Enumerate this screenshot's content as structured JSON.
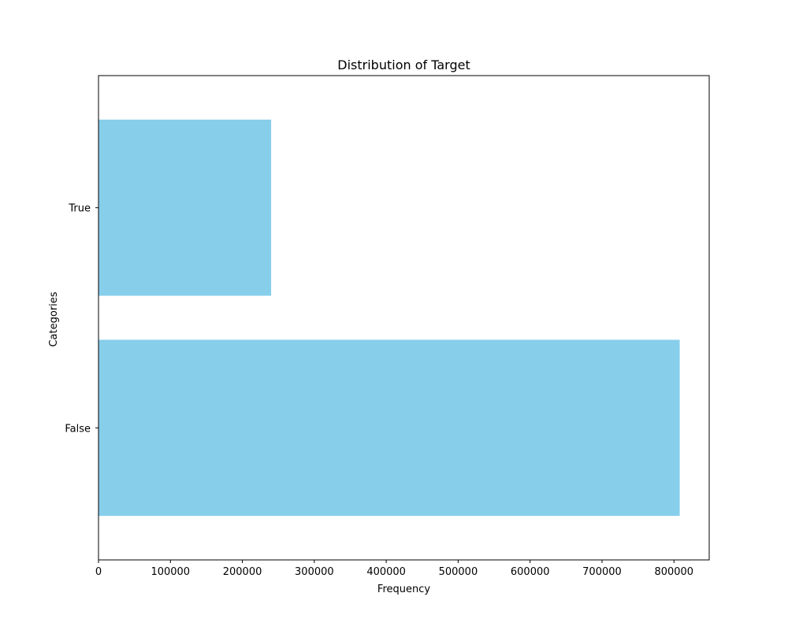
{
  "chart_data": {
    "type": "bar",
    "orientation": "horizontal",
    "title": "Distribution of Target",
    "xlabel": "Frequency",
    "ylabel": "Categories",
    "categories": [
      "False",
      "True"
    ],
    "values": [
      808000,
      240000
    ],
    "xlim": [
      0,
      849000
    ],
    "xticks": [
      0,
      100000,
      200000,
      300000,
      400000,
      500000,
      600000,
      700000,
      800000
    ],
    "grid": false,
    "legend": "none",
    "bar_color": "#87CEEB"
  }
}
